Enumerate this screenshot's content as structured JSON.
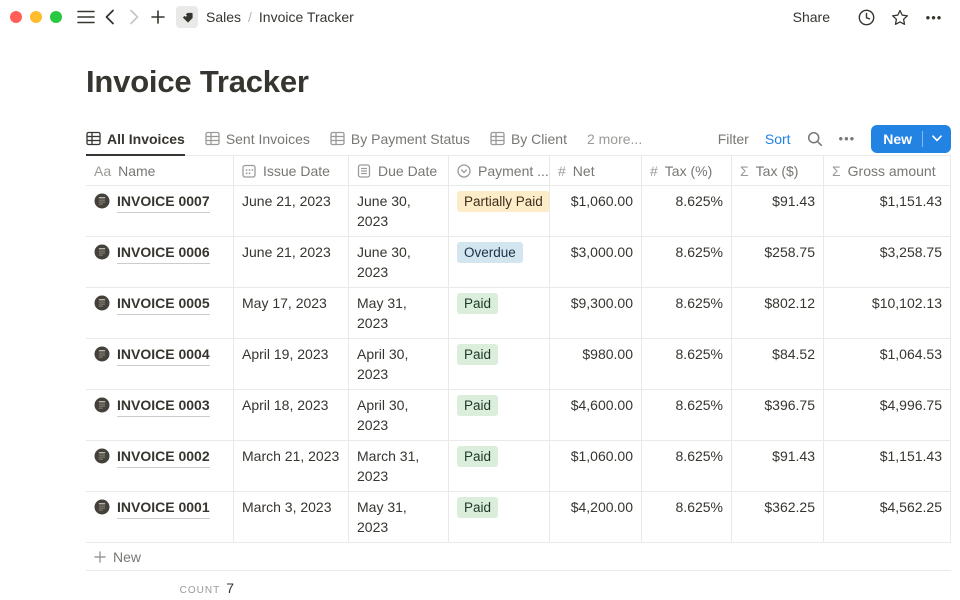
{
  "window": {
    "breadcrumb": {
      "section": "Sales",
      "separator": "/",
      "page": "Invoice Tracker"
    },
    "share_label": "Share"
  },
  "page": {
    "title": "Invoice Tracker"
  },
  "views": {
    "tabs": [
      {
        "label": "All Invoices",
        "active": true
      },
      {
        "label": "Sent Invoices",
        "active": false
      },
      {
        "label": "By Payment Status",
        "active": false
      },
      {
        "label": "By Client",
        "active": false
      }
    ],
    "more_label": "2 more..."
  },
  "toolbar": {
    "filter_label": "Filter",
    "sort_label": "Sort",
    "new_label": "New"
  },
  "icons": {
    "ellipsis": "•••",
    "hash": "#",
    "sigma": "Σ",
    "title_icon": "Aa",
    "plus": "+"
  },
  "table": {
    "columns": [
      {
        "icon": "title",
        "label": "Name"
      },
      {
        "icon": "calendar",
        "label": "Issue Date"
      },
      {
        "icon": "page",
        "label": "Due Date"
      },
      {
        "icon": "select",
        "label": "Payment ..."
      },
      {
        "icon": "hash",
        "label": "Net"
      },
      {
        "icon": "hash",
        "label": "Tax (%)"
      },
      {
        "icon": "sigma",
        "label": "Tax ($)"
      },
      {
        "icon": "sigma",
        "label": "Gross amount"
      }
    ],
    "rows": [
      {
        "name": "INVOICE 0007",
        "issue_date": "June 21, 2023",
        "due_date": "June 30, 2023",
        "status": "Partially Paid",
        "status_color": "yellow",
        "net": "$1,060.00",
        "tax_pct": "8.625%",
        "tax_usd": "$91.43",
        "gross": "$1,151.43",
        "tall": false
      },
      {
        "name": "INVOICE 0006",
        "issue_date": "June 21, 2023",
        "due_date": "June 30, 2023",
        "status": "Overdue",
        "status_color": "blue",
        "net": "$3,000.00",
        "tax_pct": "8.625%",
        "tax_usd": "$258.75",
        "gross": "$3,258.75",
        "tall": true
      },
      {
        "name": "INVOICE 0005",
        "issue_date": "May 17, 2023",
        "due_date": "May 31, 2023",
        "status": "Paid",
        "status_color": "green",
        "net": "$9,300.00",
        "tax_pct": "8.625%",
        "tax_usd": "$802.12",
        "gross": "$10,102.13",
        "tall": false
      },
      {
        "name": "INVOICE 0004",
        "issue_date": "April 19, 2023",
        "due_date": "April 30, 2023",
        "status": "Paid",
        "status_color": "green",
        "net": "$980.00",
        "tax_pct": "8.625%",
        "tax_usd": "$84.52",
        "gross": "$1,064.53",
        "tall": true
      },
      {
        "name": "INVOICE 0003",
        "issue_date": "April 18, 2023",
        "due_date": "April 30, 2023",
        "status": "Paid",
        "status_color": "green",
        "net": "$4,600.00",
        "tax_pct": "8.625%",
        "tax_usd": "$396.75",
        "gross": "$4,996.75",
        "tall": false
      },
      {
        "name": "INVOICE 0002",
        "issue_date": "March 21, 2023",
        "due_date": "March 31, 2023",
        "status": "Paid",
        "status_color": "green",
        "net": "$1,060.00",
        "tax_pct": "8.625%",
        "tax_usd": "$91.43",
        "gross": "$1,151.43",
        "tall": true
      },
      {
        "name": "INVOICE 0001",
        "issue_date": "March 3, 2023",
        "due_date": "May 31, 2023",
        "status": "Paid",
        "status_color": "green",
        "net": "$4,200.00",
        "tax_pct": "8.625%",
        "tax_usd": "$362.25",
        "gross": "$4,562.25",
        "tall": true
      }
    ],
    "add_row_label": "New",
    "count_label": "COUNT",
    "count_value": "7"
  },
  "colors": {
    "accent": "#2383e2",
    "badge_yellow_bg": "#fdecc8",
    "badge_yellow_text": "#402c1b",
    "badge_blue_bg": "#d3e5ef",
    "badge_blue_text": "#183347",
    "badge_green_bg": "#dbeddb",
    "badge_green_text": "#1c3829"
  }
}
